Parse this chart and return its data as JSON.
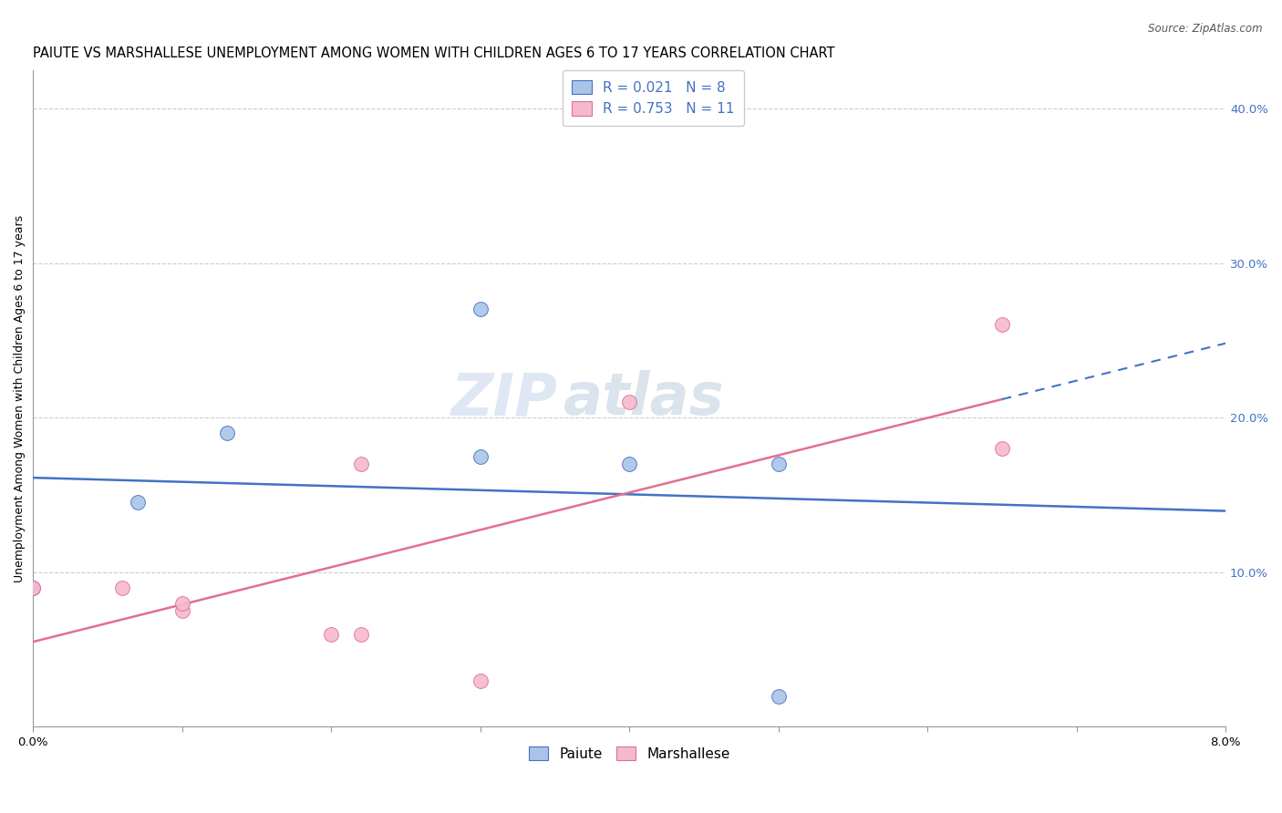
{
  "title": "PAIUTE VS MARSHALLESE UNEMPLOYMENT AMONG WOMEN WITH CHILDREN AGES 6 TO 17 YEARS CORRELATION CHART",
  "source": "Source: ZipAtlas.com",
  "ylabel": "Unemployment Among Women with Children Ages 6 to 17 years",
  "right_yticks": [
    "10.0%",
    "20.0%",
    "30.0%",
    "40.0%"
  ],
  "right_ytick_vals": [
    0.1,
    0.2,
    0.3,
    0.4
  ],
  "legend_paiute": "Paiute",
  "legend_marshallese": "Marshallese",
  "R_paiute": "0.021",
  "N_paiute": "8",
  "R_marshallese": "0.753",
  "N_marshallese": "11",
  "paiute_color": "#aac4e8",
  "marshallese_color": "#f5b8cf",
  "paiute_line_color": "#4472c4",
  "marshallese_line_color": "#e07090",
  "background_color": "#ffffff",
  "watermark_zip": "ZIP",
  "watermark_atlas": "atlas",
  "xmin": 0.0,
  "xmax": 0.08,
  "ymin": 0.0,
  "ymax": 0.425,
  "paiute_x": [
    0.0,
    0.007,
    0.013,
    0.03,
    0.03,
    0.04,
    0.05,
    0.05
  ],
  "paiute_y": [
    0.09,
    0.145,
    0.19,
    0.27,
    0.175,
    0.17,
    0.17,
    0.02
  ],
  "marshallese_x": [
    0.0,
    0.006,
    0.01,
    0.01,
    0.02,
    0.022,
    0.022,
    0.03,
    0.04,
    0.065,
    0.065
  ],
  "marshallese_y": [
    0.09,
    0.09,
    0.075,
    0.08,
    0.06,
    0.06,
    0.17,
    0.03,
    0.21,
    0.18,
    0.26
  ],
  "title_fontsize": 10.5,
  "axis_label_fontsize": 9,
  "tick_fontsize": 9.5,
  "legend_fontsize": 11,
  "watermark_fontsize_zip": 46,
  "watermark_fontsize_atlas": 46,
  "marker_size": 130
}
